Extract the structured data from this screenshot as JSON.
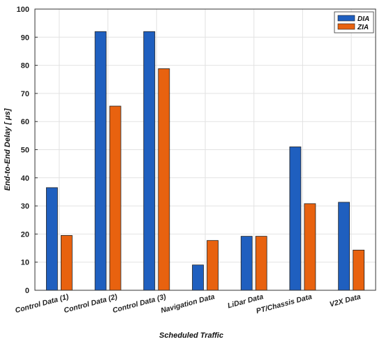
{
  "chart_data": {
    "type": "bar",
    "categories": [
      "Control Data (1)",
      "Control Data (2)",
      "Control Data (3)",
      "Navigation Data",
      "LiDar Data",
      "PT/Chassis Data",
      "V2X Data"
    ],
    "series": [
      {
        "name": "DIA",
        "values": [
          36.5,
          92.0,
          92.0,
          9.0,
          19.2,
          51.0,
          31.3
        ],
        "color": "#1f5fbf"
      },
      {
        "name": "ZIA",
        "values": [
          19.5,
          65.5,
          78.8,
          17.7,
          19.2,
          30.8,
          14.3
        ],
        "color": "#e8620f"
      }
    ],
    "xlabel": "Scheduled Traffic",
    "ylabel": "End-to-End Delay [  μs]",
    "ylim": [
      0,
      100
    ],
    "yticks": [
      0,
      10,
      20,
      30,
      40,
      50,
      60,
      70,
      80,
      90,
      100
    ],
    "grid": true,
    "legend": "top-right"
  }
}
